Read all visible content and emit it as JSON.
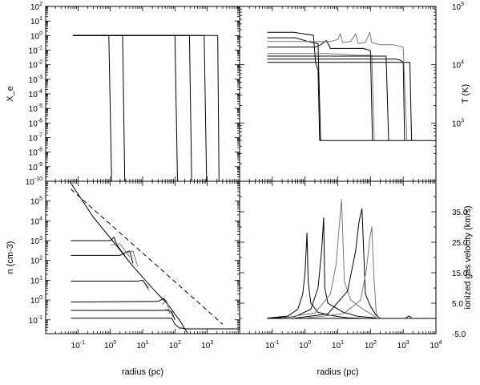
{
  "chart_data": [
    {
      "id": "xe",
      "type": "line",
      "ylabel": "X_e",
      "xscale": "log",
      "yscale": "log",
      "xlim": [
        0.01,
        10000
      ],
      "ylim": [
        1e-10,
        100
      ],
      "x_tick_labels_shown": false,
      "y_ticks": [
        {
          "v": 100,
          "label": "10^2"
        },
        {
          "v": 10,
          "label": "10^1"
        },
        {
          "v": 1,
          "label": "10^0"
        },
        {
          "v": 0.1,
          "label": "10^-1"
        },
        {
          "v": 0.01,
          "label": "10^-2"
        },
        {
          "v": 0.001,
          "label": "10^-3"
        },
        {
          "v": 0.0001,
          "label": "10^-4"
        },
        {
          "v": 1e-05,
          "label": "10^-5"
        },
        {
          "v": 1e-06,
          "label": "10^-6"
        },
        {
          "v": 1e-07,
          "label": "10^-7"
        },
        {
          "v": 1e-08,
          "label": "10^-8"
        },
        {
          "v": 1e-09,
          "label": "10^-9"
        },
        {
          "v": 1e-10,
          "label": "10^-10"
        }
      ],
      "series": [
        {
          "color": "#000000",
          "points": [
            [
              0.07,
              1
            ],
            [
              0.9,
              1
            ],
            [
              1.1,
              1e-10
            ]
          ]
        },
        {
          "color": "#000000",
          "points": [
            [
              0.07,
              1
            ],
            [
              2.4,
              1
            ],
            [
              2.8,
              1e-10
            ]
          ]
        },
        {
          "color": "#000000",
          "points": [
            [
              0.07,
              1
            ],
            [
              100,
              1
            ],
            [
              120,
              1e-10
            ]
          ]
        },
        {
          "color": "#000000",
          "points": [
            [
              0.07,
              1
            ],
            [
              280,
              1
            ],
            [
              330,
              1e-10
            ]
          ]
        },
        {
          "color": "#000000",
          "points": [
            [
              0.07,
              1
            ],
            [
              800,
              1
            ],
            [
              950,
              1e-10
            ]
          ]
        },
        {
          "color": "#000000",
          "points": [
            [
              0.07,
              1
            ],
            [
              2100,
              1
            ],
            [
              2300,
              1e-10
            ]
          ]
        }
      ]
    },
    {
      "id": "temp",
      "type": "line",
      "ylabel": "T (K)",
      "xscale": "log",
      "yscale": "log",
      "xlim": [
        0.01,
        10000
      ],
      "ylim": [
        100,
        100000
      ],
      "x_tick_labels_shown": false,
      "y_ticks": [
        {
          "v": 100000,
          "label": "10^5"
        },
        {
          "v": 10000,
          "label": "10^4"
        },
        {
          "v": 1000,
          "label": "10^3"
        }
      ],
      "series": [
        {
          "color": "#000000",
          "points": [
            [
              0.07,
              36000
            ],
            [
              0.45,
              36000
            ],
            [
              1.8,
              32000
            ],
            [
              2.1,
              11000
            ],
            [
              2.5,
              8000
            ],
            [
              2.8,
              500
            ],
            [
              10000,
              500
            ]
          ]
        },
        {
          "color": "#000000",
          "points": [
            [
              0.07,
              29000
            ],
            [
              0.5,
              29000
            ],
            [
              1.6,
              24000
            ],
            [
              2.5,
              23000
            ],
            [
              3.0,
              500
            ]
          ]
        },
        {
          "color": "#000000",
          "points": [
            [
              0.07,
              20000
            ],
            [
              2.0,
              20000
            ],
            [
              3.0,
              22000
            ],
            [
              4.5,
              26000
            ],
            [
              6.0,
              19000
            ],
            [
              60,
              19000
            ],
            [
              100,
              17500
            ],
            [
              115,
              500
            ]
          ]
        },
        {
          "color": "#777777",
          "points": [
            [
              0.07,
              15500
            ],
            [
              5,
              15500
            ],
            [
              20,
              14800
            ],
            [
              40,
              14500
            ],
            [
              80,
              14500
            ],
            [
              110,
              14500
            ],
            [
              130,
              500
            ]
          ]
        },
        {
          "color": "#000000",
          "points": [
            [
              0.07,
              14000
            ],
            [
              300,
              14000
            ],
            [
              360,
              500
            ]
          ]
        },
        {
          "color": "#000000",
          "points": [
            [
              0.07,
              12500
            ],
            [
              600,
              12500
            ],
            [
              800,
              12000
            ],
            [
              1000,
              11000
            ],
            [
              1100,
              500
            ]
          ]
        },
        {
          "color": "#000000",
          "points": [
            [
              0.07,
              11000
            ],
            [
              1600,
              11000
            ],
            [
              1800,
              500
            ]
          ]
        },
        {
          "color": "#777777",
          "points": [
            [
              0.07,
              25000
            ],
            [
              6,
              25000
            ],
            [
              10,
              27000
            ],
            [
              12,
              34000
            ],
            [
              14,
              24000
            ],
            [
              25,
              25000
            ],
            [
              35,
              34000
            ],
            [
              42,
              23000
            ],
            [
              70,
              24000
            ],
            [
              95,
              36000
            ],
            [
              110,
              24000
            ],
            [
              200,
              22000
            ],
            [
              500,
              22000
            ],
            [
              1000,
              20000
            ],
            [
              1300,
              500
            ]
          ]
        }
      ]
    },
    {
      "id": "density",
      "type": "line",
      "xlabel": "radius (pc)",
      "ylabel": "n (cm-3)",
      "xscale": "log",
      "yscale": "log",
      "xlim": [
        0.01,
        10000
      ],
      "ylim": [
        0.02,
        1000000
      ],
      "x_ticks": [
        {
          "v": 0.1,
          "label": "10^-1"
        },
        {
          "v": 1,
          "label": "10^0"
        },
        {
          "v": 10,
          "label": "10^1"
        },
        {
          "v": 100,
          "label": "10^2"
        },
        {
          "v": 1000,
          "label": "10^3"
        }
      ],
      "y_ticks": [
        {
          "v": 100000,
          "label": "10^5"
        },
        {
          "v": 10000,
          "label": "10^4"
        },
        {
          "v": 1000,
          "label": "10^3"
        },
        {
          "v": 100,
          "label": "10^2"
        },
        {
          "v": 10,
          "label": "10^1"
        },
        {
          "v": 1,
          "label": "10^0"
        },
        {
          "v": 0.1,
          "label": "10^-1"
        }
      ],
      "series": [
        {
          "color": "#000000",
          "dash": "6,4",
          "points": [
            [
              0.06,
              400000
            ],
            [
              3000,
              0.06
            ]
          ]
        },
        {
          "color": "#000000",
          "points": [
            [
              0.055,
              1000000
            ],
            [
              0.3,
              15000
            ],
            [
              1.5,
              600
            ],
            [
              5,
              50
            ],
            [
              20,
              4
            ],
            [
              60,
              0.6
            ],
            [
              150,
              0.08
            ],
            [
              200,
              0.035
            ]
          ]
        },
        {
          "color": "#000000",
          "points": [
            [
              0.06,
              1000
            ],
            [
              1.0,
              1000
            ],
            [
              1.3,
              1500
            ],
            [
              1.6,
              600
            ],
            [
              3,
              150
            ]
          ]
        },
        {
          "color": "#000000",
          "points": [
            [
              0.06,
              180
            ],
            [
              2,
              180
            ],
            [
              3,
              260
            ],
            [
              4,
              300
            ],
            [
              5,
              70
            ]
          ]
        },
        {
          "color": "#000000",
          "points": [
            [
              0.06,
              9
            ],
            [
              7,
              9
            ],
            [
              10,
              10
            ],
            [
              15,
              4
            ]
          ]
        },
        {
          "color": "#000000",
          "points": [
            [
              0.06,
              0.8
            ],
            [
              30,
              0.85
            ],
            [
              45,
              1.2
            ],
            [
              55,
              0.8
            ],
            [
              60,
              0.6
            ]
          ]
        },
        {
          "color": "#000000",
          "points": [
            [
              0.06,
              0.3
            ],
            [
              60,
              0.3
            ],
            [
              80,
              0.25
            ],
            [
              100,
              0.1
            ]
          ]
        },
        {
          "color": "#000000",
          "points": [
            [
              0.06,
              0.12
            ],
            [
              80,
              0.12
            ],
            [
              100,
              0.06
            ],
            [
              150,
              0.035
            ]
          ]
        },
        {
          "color": "#777777",
          "points": [
            [
              1,
              600
            ],
            [
              2,
              700
            ],
            [
              4,
              150
            ]
          ]
        },
        {
          "color": "#777777",
          "points": [
            [
              3,
              250
            ],
            [
              5,
              300
            ],
            [
              7,
              50
            ]
          ]
        },
        {
          "color": "#777777",
          "points": [
            [
              12,
              6
            ],
            [
              16,
              3
            ]
          ]
        },
        {
          "color": "#777777",
          "points": [
            [
              40,
              0.6
            ],
            [
              55,
              0.9
            ],
            [
              70,
              0.2
            ]
          ]
        },
        {
          "color": "#777777",
          "points": [
            [
              50,
              0.35
            ],
            [
              70,
              0.3
            ],
            [
              85,
              0.15
            ]
          ]
        },
        {
          "color": "#000000",
          "points": [
            [
              200,
              0.035
            ],
            [
              10000,
              0.035
            ]
          ]
        },
        {
          "color": "#000000",
          "points": [
            [
              150,
              0.04
            ],
            [
              200,
              0.035
            ],
            [
              250,
              0.02
            ]
          ]
        }
      ]
    },
    {
      "id": "velocity",
      "type": "line",
      "xlabel": "radius (pc)",
      "ylabel": "ionized gas velocity (km/s)",
      "xscale": "log",
      "yscale": "linear",
      "xlim": [
        0.01,
        10000
      ],
      "ylim": [
        -5,
        45
      ],
      "x_ticks": [
        {
          "v": 0.1,
          "label": "10^-1"
        },
        {
          "v": 1,
          "label": "10^0"
        },
        {
          "v": 10,
          "label": "10^1"
        },
        {
          "v": 100,
          "label": "10^2"
        },
        {
          "v": 1000,
          "label": "10^3"
        },
        {
          "v": 10000,
          "label": "10^4"
        }
      ],
      "y_ticks": [
        {
          "v": 35,
          "label": "35.0"
        },
        {
          "v": 25,
          "label": "25.0"
        },
        {
          "v": 15,
          "label": "15.0"
        },
        {
          "v": 5,
          "label": "5.0"
        },
        {
          "v": -5,
          "label": "-5.0"
        }
      ],
      "series": [
        {
          "color": "#000000",
          "points": [
            [
              0.07,
              0
            ],
            [
              10000,
              0
            ]
          ]
        },
        {
          "color": "#000000",
          "points": [
            [
              0.07,
              0.1
            ],
            [
              0.3,
              0.8
            ],
            [
              0.6,
              3
            ],
            [
              0.85,
              8
            ],
            [
              1.0,
              15
            ],
            [
              1.15,
              28
            ],
            [
              1.25,
              12
            ],
            [
              1.5,
              5
            ],
            [
              2.5,
              2
            ],
            [
              6,
              1
            ],
            [
              20,
              0.2
            ],
            [
              60,
              0
            ]
          ]
        },
        {
          "color": "#000000",
          "points": [
            [
              0.1,
              0.1
            ],
            [
              0.5,
              0.6
            ],
            [
              1.5,
              3
            ],
            [
              2.5,
              10
            ],
            [
              3.2,
              22
            ],
            [
              3.7,
              33
            ],
            [
              4.0,
              10
            ],
            [
              5,
              5
            ],
            [
              15,
              2
            ],
            [
              40,
              0.7
            ],
            [
              200,
              0
            ]
          ]
        },
        {
          "color": "#777777",
          "points": [
            [
              0.2,
              0.1
            ],
            [
              2,
              1.8
            ],
            [
              6,
              8
            ],
            [
              9,
              18
            ],
            [
              11,
              30
            ],
            [
              13,
              39
            ],
            [
              16,
              12
            ],
            [
              25,
              6
            ],
            [
              60,
              3
            ],
            [
              120,
              1
            ],
            [
              160,
              0
            ]
          ]
        },
        {
          "color": "#000000",
          "points": [
            [
              0.5,
              0.1
            ],
            [
              5,
              1.5
            ],
            [
              20,
              9
            ],
            [
              35,
              22
            ],
            [
              45,
              32
            ],
            [
              55,
              36
            ],
            [
              70,
              8
            ],
            [
              100,
              4
            ],
            [
              150,
              1
            ],
            [
              200,
              0
            ]
          ]
        },
        {
          "color": "#777777",
          "points": [
            [
              1,
              0.1
            ],
            [
              15,
              1.5
            ],
            [
              50,
              6
            ],
            [
              75,
              16
            ],
            [
              95,
              26
            ],
            [
              110,
              30
            ],
            [
              125,
              15
            ],
            [
              150,
              2
            ],
            [
              180,
              0
            ]
          ]
        },
        {
          "color": "#000000",
          "points": [
            [
              1200,
              0.2
            ],
            [
              1500,
              0.8
            ],
            [
              1800,
              0.3
            ]
          ]
        }
      ]
    }
  ]
}
